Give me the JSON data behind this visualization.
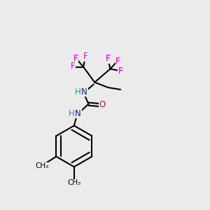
{
  "bg_color": "#ebebeb",
  "atom_colors": {
    "F": "#ee00ee",
    "N": "#1414c8",
    "O": "#ff0000",
    "H": "#3a9090",
    "C": "#000000"
  },
  "bond_color": "#000000",
  "bond_width": 1.5,
  "figsize": [
    3.0,
    3.0
  ],
  "dpi": 100
}
